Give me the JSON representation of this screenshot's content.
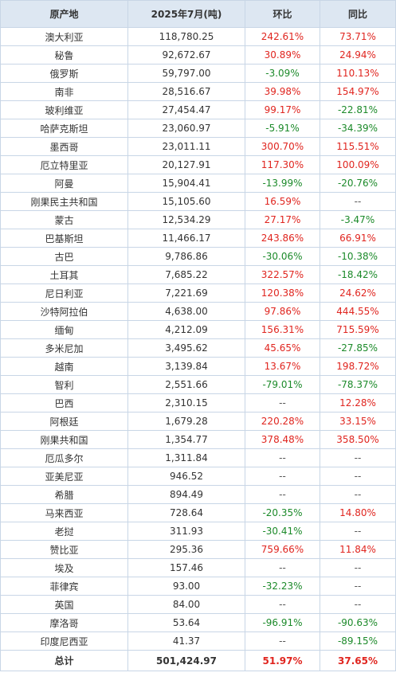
{
  "columns": [
    "原产地",
    "2025年7月(吨)",
    "环比",
    "同比"
  ],
  "rows": [
    {
      "origin": "澳大利亚",
      "value": "118,780.25",
      "mom": "242.61%",
      "yoy": "73.71%"
    },
    {
      "origin": "秘鲁",
      "value": "92,672.67",
      "mom": "30.89%",
      "yoy": "24.94%"
    },
    {
      "origin": "俄罗斯",
      "value": "59,797.00",
      "mom": "-3.09%",
      "yoy": "110.13%"
    },
    {
      "origin": "南非",
      "value": "28,516.67",
      "mom": "39.98%",
      "yoy": "154.97%"
    },
    {
      "origin": "玻利维亚",
      "value": "27,454.47",
      "mom": "99.17%",
      "yoy": "-22.81%"
    },
    {
      "origin": "哈萨克斯坦",
      "value": "23,060.97",
      "mom": "-5.91%",
      "yoy": "-34.39%"
    },
    {
      "origin": "墨西哥",
      "value": "23,011.11",
      "mom": "300.70%",
      "yoy": "115.51%"
    },
    {
      "origin": "厄立特里亚",
      "value": "20,127.91",
      "mom": "117.30%",
      "yoy": "100.09%"
    },
    {
      "origin": "阿曼",
      "value": "15,904.41",
      "mom": "-13.99%",
      "yoy": "-20.76%"
    },
    {
      "origin": "刚果民主共和国",
      "value": "15,105.60",
      "mom": "16.59%",
      "yoy": "--"
    },
    {
      "origin": "蒙古",
      "value": "12,534.29",
      "mom": "27.17%",
      "yoy": "-3.47%"
    },
    {
      "origin": "巴基斯坦",
      "value": "11,466.17",
      "mom": "243.86%",
      "yoy": "66.91%"
    },
    {
      "origin": "古巴",
      "value": "9,786.86",
      "mom": "-30.06%",
      "yoy": "-10.38%"
    },
    {
      "origin": "土耳其",
      "value": "7,685.22",
      "mom": "322.57%",
      "yoy": "-18.42%"
    },
    {
      "origin": "尼日利亚",
      "value": "7,221.69",
      "mom": "120.38%",
      "yoy": "24.62%"
    },
    {
      "origin": "沙特阿拉伯",
      "value": "4,638.00",
      "mom": "97.86%",
      "yoy": "444.55%"
    },
    {
      "origin": "缅甸",
      "value": "4,212.09",
      "mom": "156.31%",
      "yoy": "715.59%"
    },
    {
      "origin": "多米尼加",
      "value": "3,495.62",
      "mom": "45.65%",
      "yoy": "-27.85%"
    },
    {
      "origin": "越南",
      "value": "3,139.84",
      "mom": "13.67%",
      "yoy": "198.72%"
    },
    {
      "origin": "智利",
      "value": "2,551.66",
      "mom": "-79.01%",
      "yoy": "-78.37%"
    },
    {
      "origin": "巴西",
      "value": "2,310.15",
      "mom": "--",
      "yoy": "12.28%"
    },
    {
      "origin": "阿根廷",
      "value": "1,679.28",
      "mom": "220.28%",
      "yoy": "33.15%"
    },
    {
      "origin": "刚果共和国",
      "value": "1,354.77",
      "mom": "378.48%",
      "yoy": "358.50%"
    },
    {
      "origin": "厄瓜多尔",
      "value": "1,311.84",
      "mom": "--",
      "yoy": "--"
    },
    {
      "origin": "亚美尼亚",
      "value": "946.52",
      "mom": "--",
      "yoy": "--"
    },
    {
      "origin": "希腊",
      "value": "894.49",
      "mom": "--",
      "yoy": "--"
    },
    {
      "origin": "马来西亚",
      "value": "728.64",
      "mom": "-20.35%",
      "yoy": "14.80%"
    },
    {
      "origin": "老挝",
      "value": "311.93",
      "mom": "-30.41%",
      "yoy": "--"
    },
    {
      "origin": "赞比亚",
      "value": "295.36",
      "mom": "759.66%",
      "yoy": "11.84%"
    },
    {
      "origin": "埃及",
      "value": "157.46",
      "mom": "--",
      "yoy": "--"
    },
    {
      "origin": "菲律宾",
      "value": "93.00",
      "mom": "-32.23%",
      "yoy": "--"
    },
    {
      "origin": "英国",
      "value": "84.00",
      "mom": "--",
      "yoy": "--"
    },
    {
      "origin": "摩洛哥",
      "value": "53.64",
      "mom": "-96.91%",
      "yoy": "-90.63%"
    },
    {
      "origin": "印度尼西亚",
      "value": "41.37",
      "mom": "--",
      "yoy": "-89.15%"
    }
  ],
  "total": {
    "origin": "总计",
    "value": "501,424.97",
    "mom": "51.97%",
    "yoy": "37.65%"
  },
  "colors": {
    "positive": "#e0251f",
    "negative": "#1c8a2a",
    "header_bg": "#dde7f2",
    "border": "#c8d6e6"
  }
}
